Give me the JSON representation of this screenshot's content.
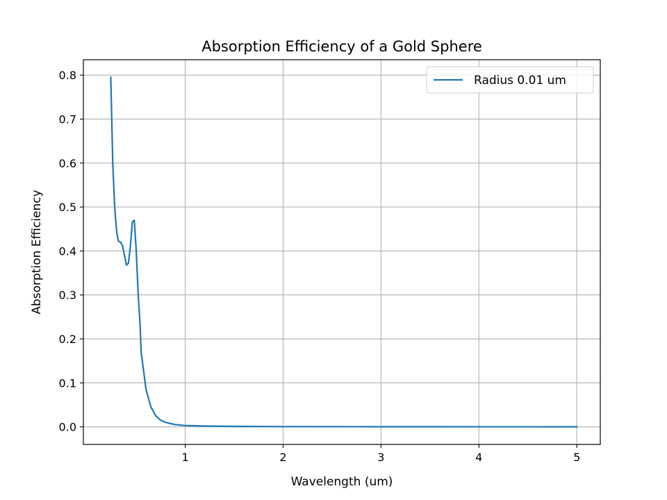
{
  "chart_data": {
    "type": "line",
    "title": "Absorption Efficiency of a Gold Sphere",
    "xlabel": "Wavelength (um)",
    "ylabel": "Absorption Efficiency",
    "xlim": [
      -0.04,
      5.24
    ],
    "ylim": [
      -0.04,
      0.835
    ],
    "xticks": [
      1,
      2,
      3,
      4,
      5
    ],
    "yticks": [
      0.0,
      0.1,
      0.2,
      0.3,
      0.4,
      0.5,
      0.6,
      0.7,
      0.8
    ],
    "grid": true,
    "legend_position": "top-right",
    "series": [
      {
        "name": "Radius 0.01 um",
        "color": "#1f77b4",
        "points": [
          [
            0.24,
            0.795
          ],
          [
            0.26,
            0.6
          ],
          [
            0.27,
            0.55
          ],
          [
            0.28,
            0.5
          ],
          [
            0.29,
            0.47
          ],
          [
            0.3,
            0.445
          ],
          [
            0.31,
            0.43
          ],
          [
            0.32,
            0.422
          ],
          [
            0.34,
            0.42
          ],
          [
            0.36,
            0.412
          ],
          [
            0.38,
            0.39
          ],
          [
            0.4,
            0.368
          ],
          [
            0.42,
            0.372
          ],
          [
            0.44,
            0.41
          ],
          [
            0.46,
            0.466
          ],
          [
            0.48,
            0.47
          ],
          [
            0.5,
            0.4
          ],
          [
            0.52,
            0.3
          ],
          [
            0.54,
            0.23
          ],
          [
            0.55,
            0.17
          ],
          [
            0.6,
            0.085
          ],
          [
            0.65,
            0.045
          ],
          [
            0.7,
            0.025
          ],
          [
            0.75,
            0.015
          ],
          [
            0.8,
            0.01
          ],
          [
            0.9,
            0.005
          ],
          [
            1.0,
            0.003
          ],
          [
            1.2,
            0.0018
          ],
          [
            1.5,
            0.0011
          ],
          [
            2.0,
            0.0006
          ],
          [
            3.0,
            0.0003
          ],
          [
            4.0,
            0.0002
          ],
          [
            5.0,
            0.0001
          ]
        ]
      }
    ]
  }
}
